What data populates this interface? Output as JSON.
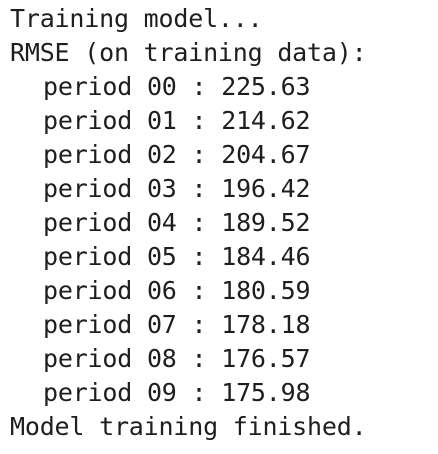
{
  "console": {
    "header_line": "Training model...",
    "metric_line": "RMSE (on training data):",
    "period_lines": [
      "period 00 : 225.63",
      "period 01 : 214.62",
      "period 02 : 204.67",
      "period 03 : 196.42",
      "period 04 : 189.52",
      "period 05 : 184.46",
      "period 06 : 180.59",
      "period 07 : 178.18",
      "period 08 : 176.57",
      "period 09 : 175.98"
    ],
    "footer_line": "Model training finished."
  }
}
